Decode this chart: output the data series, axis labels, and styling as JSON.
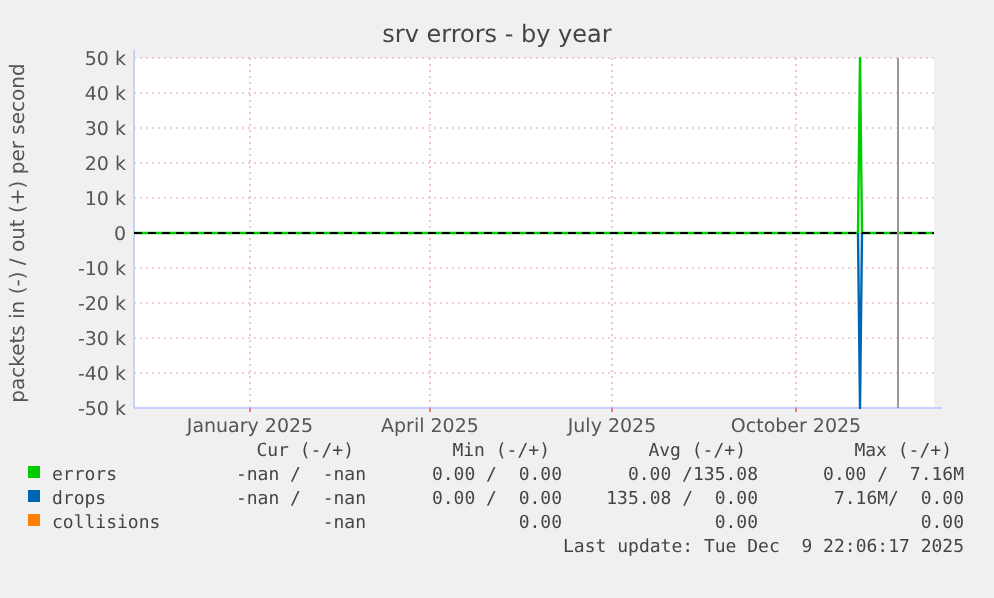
{
  "chart_data": {
    "type": "line",
    "title": "srv errors - by year",
    "ylabel": "packets in (-) / out (+) per second",
    "x": [
      "2024-11-04",
      "2025-11-01",
      "2025-11-02",
      "2025-11-03",
      "2025-12-09"
    ],
    "series": [
      {
        "name": "errors",
        "color": "#00cc00",
        "values": [
          0,
          0,
          50000,
          0,
          0
        ]
      },
      {
        "name": "drops",
        "color": "#0066b3",
        "values": [
          null,
          0,
          -50000,
          0,
          null
        ]
      },
      {
        "name": "collisions",
        "color": "#ff8000",
        "values": [
          null,
          null,
          null,
          null,
          null
        ]
      }
    ],
    "xlim": [
      "2024-11-04",
      "2025-12-09"
    ],
    "xticks": [
      {
        "value": "2025-01-01",
        "label": "January 2025"
      },
      {
        "value": "2025-04-01",
        "label": "April 2025"
      },
      {
        "value": "2025-07-01",
        "label": "July 2025"
      },
      {
        "value": "2025-10-01",
        "label": "October 2025"
      }
    ],
    "ylim": [
      -50000,
      50000
    ],
    "yticks": [
      {
        "value": -50000,
        "label": "-50 k"
      },
      {
        "value": -40000,
        "label": "-40 k"
      },
      {
        "value": -30000,
        "label": "-30 k"
      },
      {
        "value": -20000,
        "label": "-20 k"
      },
      {
        "value": -10000,
        "label": "-10 k"
      },
      0,
      {
        "value": 10000,
        "label": "10 k"
      },
      {
        "value": 20000,
        "label": "20 k"
      },
      {
        "value": 30000,
        "label": "30 k"
      },
      {
        "value": 40000,
        "label": "40 k"
      },
      {
        "value": 50000,
        "label": "50 k"
      }
    ],
    "grid": true,
    "legend": "bottom",
    "marker": "none",
    "line_style": "solid",
    "ref_lines": [
      {
        "axis": "y",
        "value": 0,
        "color": "#000000",
        "line_style": "dashed"
      },
      {
        "axis": "x",
        "value": "2025-11-21",
        "color": "#999999",
        "line_style": "solid"
      }
    ],
    "annotations": [
      "Cur (-/+)",
      "Min (-/+)",
      "Avg (-/+)",
      "Max (-/+)",
      "-nan /  -nan",
      "0.00 /  0.00",
      "0.00 /135.08",
      "0.00 /  7.16M",
      "-nan /  -nan",
      "0.00 /  0.00",
      "135.08 /  0.00",
      "7.16M/  0.00",
      "-nan",
      "0.00",
      "0.00",
      "0.00",
      "Last update: Tue Dec  9 22:06:17 2025"
    ]
  }
}
